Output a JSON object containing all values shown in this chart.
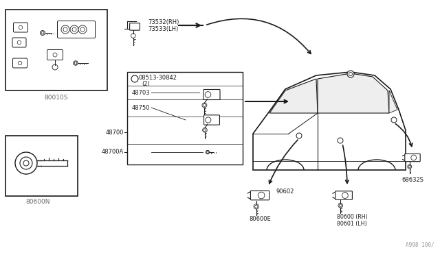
{
  "bg_color": "#ffffff",
  "line_color": "#1a1a1a",
  "text_color": "#1a1a1a",
  "gray_text": "#888888",
  "part_number_bottom_right": "A998 100/",
  "labels": {
    "box1_part": "80010S",
    "box2_part": "80600N",
    "part_73532": "73532(RH)",
    "part_73533": "73533(LH)",
    "part_08513": "08513-30842",
    "part_08513_qty": "(2)",
    "part_48703": "48703",
    "part_48750": "48750",
    "part_48700": "48700",
    "part_48700A": "48700A",
    "part_90602": "90602",
    "part_80600E": "80600E",
    "part_80600": "80600 (RH)",
    "part_80601": "80601 (LH)",
    "part_68632S": "68632S"
  },
  "figsize": [
    6.4,
    3.72
  ],
  "dpi": 100
}
